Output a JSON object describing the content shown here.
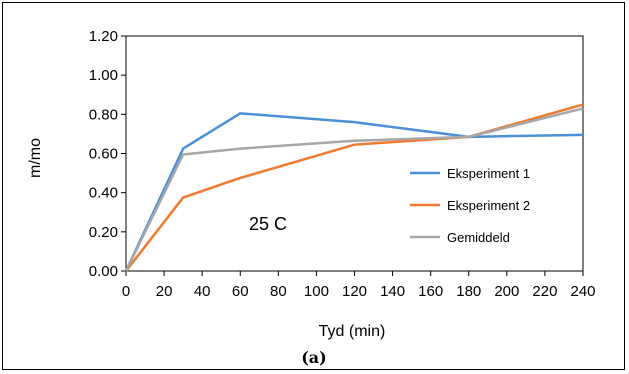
{
  "caption": "(a)",
  "chart_data": {
    "type": "line",
    "title": "",
    "xlabel": "Tyd (min)",
    "ylabel": "m/mo",
    "xlim": [
      0,
      240
    ],
    "ylim": [
      0,
      1.2
    ],
    "xticks": [
      0,
      20,
      40,
      60,
      80,
      100,
      120,
      140,
      160,
      180,
      200,
      220,
      240
    ],
    "yticks": [
      "0.00",
      "0.20",
      "0.40",
      "0.60",
      "0.80",
      "1.00",
      "1.20"
    ],
    "ytick_values": [
      0,
      0.2,
      0.4,
      0.6,
      0.8,
      1.0,
      1.2
    ],
    "grid": false,
    "legend_position": "right",
    "annotation": "25 C",
    "series": [
      {
        "name": "Eksperiment 1",
        "color": "#4a90d9",
        "x": [
          0,
          30,
          60,
          120,
          180,
          240
        ],
        "y": [
          0.0,
          0.625,
          0.805,
          0.76,
          0.685,
          0.695
        ]
      },
      {
        "name": "Eksperiment 2",
        "color": "#f07a30",
        "x": [
          0,
          30,
          60,
          120,
          180,
          240
        ],
        "y": [
          0.0,
          0.375,
          0.475,
          0.645,
          0.685,
          0.85
        ]
      },
      {
        "name": "Gemiddeld",
        "color": "#a6a6a6",
        "x": [
          0,
          30,
          60,
          120,
          180,
          240
        ],
        "y": [
          0.0,
          0.595,
          0.625,
          0.665,
          0.685,
          0.83
        ]
      }
    ]
  }
}
